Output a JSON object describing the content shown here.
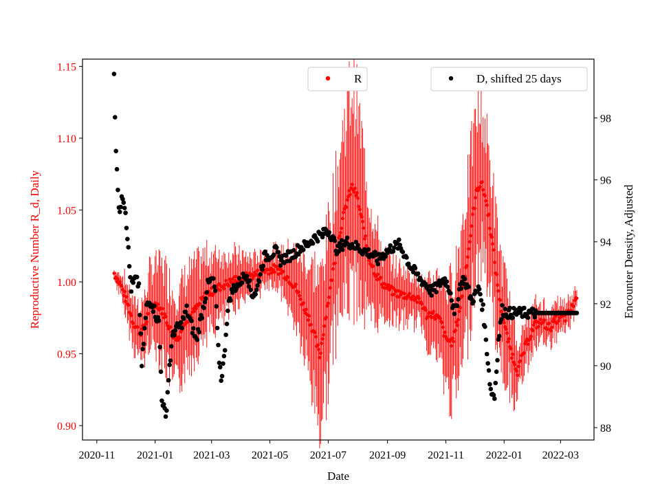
{
  "chart_data": {
    "type": "scatter",
    "xlabel": "Date",
    "x_tick_labels": [
      "2020-11",
      "2021-01",
      "2021-03",
      "2021-05",
      "2021-07",
      "2021-09",
      "2021-11",
      "2022-01",
      "2022-03"
    ],
    "x_range_days": [
      -15,
      520
    ],
    "left_axis": {
      "label": "Reproductive Number R_d, Daily",
      "color": "#ff0000",
      "ylim": [
        0.89,
        1.155
      ],
      "ticks": [
        "0.90",
        "0.95",
        "1.00",
        "1.05",
        "1.10",
        "1.15"
      ]
    },
    "right_axis": {
      "label": "Encounter Density, Adjusted",
      "color": "#000000",
      "ylim": [
        87.6,
        99.9
      ],
      "ticks": [
        "88",
        "90",
        "92",
        "94",
        "96",
        "98"
      ]
    },
    "legend": [
      {
        "name": "R",
        "color": "#ff0000",
        "position": "top-center"
      },
      {
        "name": "D, shifted 25 days",
        "color": "#000000",
        "position": "top-right"
      }
    ],
    "series_R_keypoints": [
      [
        18,
        1.006
      ],
      [
        25,
        0.998
      ],
      [
        32,
        0.985
      ],
      [
        38,
        0.972
      ],
      [
        45,
        0.965
      ],
      [
        50,
        0.968
      ],
      [
        55,
        0.982
      ],
      [
        63,
        0.985
      ],
      [
        70,
        0.978
      ],
      [
        78,
        0.965
      ],
      [
        85,
        0.96
      ],
      [
        92,
        0.973
      ],
      [
        100,
        0.978
      ],
      [
        108,
        0.985
      ],
      [
        115,
        0.992
      ],
      [
        120,
        0.993
      ],
      [
        130,
        0.997
      ],
      [
        140,
        1.0
      ],
      [
        150,
        1.003
      ],
      [
        160,
        1.004
      ],
      [
        170,
        1.006
      ],
      [
        175,
        1.008
      ],
      [
        185,
        1.009
      ],
      [
        192,
        1.008
      ],
      [
        200,
        1.003
      ],
      [
        208,
        0.996
      ],
      [
        215,
        0.985
      ],
      [
        222,
        0.975
      ],
      [
        228,
        0.962
      ],
      [
        233,
        0.948
      ],
      [
        238,
        0.97
      ],
      [
        244,
        0.995
      ],
      [
        250,
        1.02
      ],
      [
        256,
        1.04
      ],
      [
        262,
        1.057
      ],
      [
        267,
        1.066
      ],
      [
        272,
        1.06
      ],
      [
        278,
        1.04
      ],
      [
        284,
        1.018
      ],
      [
        292,
        1.005
      ],
      [
        300,
        0.998
      ],
      [
        310,
        0.993
      ],
      [
        320,
        0.991
      ],
      [
        330,
        0.99
      ],
      [
        340,
        0.985
      ],
      [
        345,
        0.977
      ],
      [
        350,
        0.978
      ],
      [
        355,
        0.976
      ],
      [
        360,
        0.972
      ],
      [
        365,
        0.96
      ],
      [
        372,
        0.958
      ],
      [
        378,
        0.975
      ],
      [
        384,
        1.0
      ],
      [
        390,
        1.028
      ],
      [
        394,
        1.05
      ],
      [
        398,
        1.065
      ],
      [
        402,
        1.069
      ],
      [
        406,
        1.06
      ],
      [
        410,
        1.045
      ],
      [
        414,
        1.025
      ],
      [
        418,
        1.003
      ],
      [
        422,
        0.985
      ],
      [
        428,
        0.965
      ],
      [
        434,
        0.95
      ],
      [
        440,
        0.938
      ],
      [
        450,
        0.958
      ],
      [
        458,
        0.97
      ],
      [
        466,
        0.972
      ],
      [
        474,
        0.968
      ],
      [
        482,
        0.975
      ],
      [
        490,
        0.975
      ],
      [
        496,
        0.98
      ],
      [
        502,
        0.99
      ]
    ],
    "series_R_error_keypoints": [
      [
        18,
        0.002
      ],
      [
        30,
        0.012
      ],
      [
        45,
        0.018
      ],
      [
        70,
        0.032
      ],
      [
        100,
        0.03
      ],
      [
        130,
        0.022
      ],
      [
        160,
        0.012
      ],
      [
        190,
        0.012
      ],
      [
        215,
        0.03
      ],
      [
        233,
        0.05
      ],
      [
        250,
        0.05
      ],
      [
        267,
        0.07
      ],
      [
        280,
        0.05
      ],
      [
        300,
        0.02
      ],
      [
        340,
        0.015
      ],
      [
        360,
        0.03
      ],
      [
        372,
        0.04
      ],
      [
        385,
        0.05
      ],
      [
        400,
        0.052
      ],
      [
        415,
        0.04
      ],
      [
        430,
        0.03
      ],
      [
        445,
        0.015
      ],
      [
        470,
        0.012
      ],
      [
        502,
        0.008
      ]
    ],
    "series_D_keypoints": [
      [
        18,
        99.3
      ],
      [
        19,
        98.1
      ],
      [
        20,
        97.1
      ],
      [
        21,
        96.4
      ],
      [
        22,
        95.8
      ],
      [
        23,
        95.1
      ],
      [
        24,
        94.8
      ],
      [
        26,
        95.6
      ],
      [
        28,
        95.4
      ],
      [
        30,
        95.0
      ],
      [
        32,
        94.2
      ],
      [
        34,
        93.2
      ],
      [
        36,
        92.5
      ],
      [
        40,
        92.8
      ],
      [
        44,
        92.6
      ],
      [
        47,
        90.0
      ],
      [
        52,
        91.9
      ],
      [
        57,
        92.1
      ],
      [
        62,
        91.6
      ],
      [
        65,
        91.4
      ],
      [
        68,
        89.0
      ],
      [
        72,
        88.3
      ],
      [
        76,
        90.0
      ],
      [
        80,
        91.1
      ],
      [
        88,
        91.3
      ],
      [
        94,
        91.8
      ],
      [
        100,
        91.2
      ],
      [
        104,
        90.8
      ],
      [
        108,
        91.4
      ],
      [
        112,
        92.0
      ],
      [
        116,
        92.6
      ],
      [
        121,
        92.8
      ],
      [
        124,
        92.4
      ],
      [
        127,
        90.5
      ],
      [
        130,
        89.6
      ],
      [
        133,
        90.2
      ],
      [
        136,
        91.5
      ],
      [
        139,
        92.2
      ],
      [
        143,
        92.5
      ],
      [
        147,
        92.6
      ],
      [
        152,
        92.8
      ],
      [
        157,
        93.0
      ],
      [
        162,
        92.3
      ],
      [
        167,
        92.4
      ],
      [
        171,
        93.0
      ],
      [
        175,
        93.5
      ],
      [
        182,
        93.6
      ],
      [
        187,
        93.7
      ],
      [
        192,
        93.4
      ],
      [
        198,
        93.5
      ],
      [
        205,
        93.6
      ],
      [
        212,
        93.8
      ],
      [
        220,
        93.9
      ],
      [
        226,
        94.1
      ],
      [
        232,
        94.2
      ],
      [
        236,
        94.2
      ],
      [
        240,
        94.4
      ],
      [
        244,
        94.3
      ],
      [
        248,
        94.0
      ],
      [
        252,
        93.7
      ],
      [
        256,
        93.9
      ],
      [
        262,
        94.0
      ],
      [
        268,
        93.9
      ],
      [
        274,
        93.8
      ],
      [
        280,
        93.7
      ],
      [
        288,
        93.6
      ],
      [
        294,
        93.4
      ],
      [
        300,
        93.6
      ],
      [
        308,
        93.8
      ],
      [
        316,
        93.9
      ],
      [
        322,
        93.6
      ],
      [
        328,
        93.2
      ],
      [
        333,
        93.0
      ],
      [
        338,
        92.8
      ],
      [
        345,
        92.6
      ],
      [
        350,
        92.4
      ],
      [
        355,
        92.5
      ],
      [
        360,
        92.7
      ],
      [
        364,
        92.8
      ],
      [
        370,
        92.4
      ],
      [
        374,
        91.6
      ],
      [
        380,
        92.6
      ],
      [
        384,
        92.8
      ],
      [
        388,
        92.5
      ],
      [
        392,
        92.1
      ],
      [
        396,
        92.3
      ],
      [
        400,
        92.5
      ],
      [
        404,
        91.8
      ],
      [
        408,
        90.5
      ],
      [
        412,
        89.2
      ],
      [
        416,
        89.0
      ],
      [
        420,
        90.8
      ],
      [
        424,
        91.8
      ],
      [
        430,
        91.7
      ],
      [
        440,
        91.7
      ],
      [
        450,
        91.7
      ],
      [
        460,
        91.7
      ],
      [
        470,
        91.7
      ],
      [
        480,
        91.7
      ],
      [
        490,
        91.7
      ],
      [
        500,
        91.7
      ],
      [
        502,
        91.7
      ]
    ]
  }
}
